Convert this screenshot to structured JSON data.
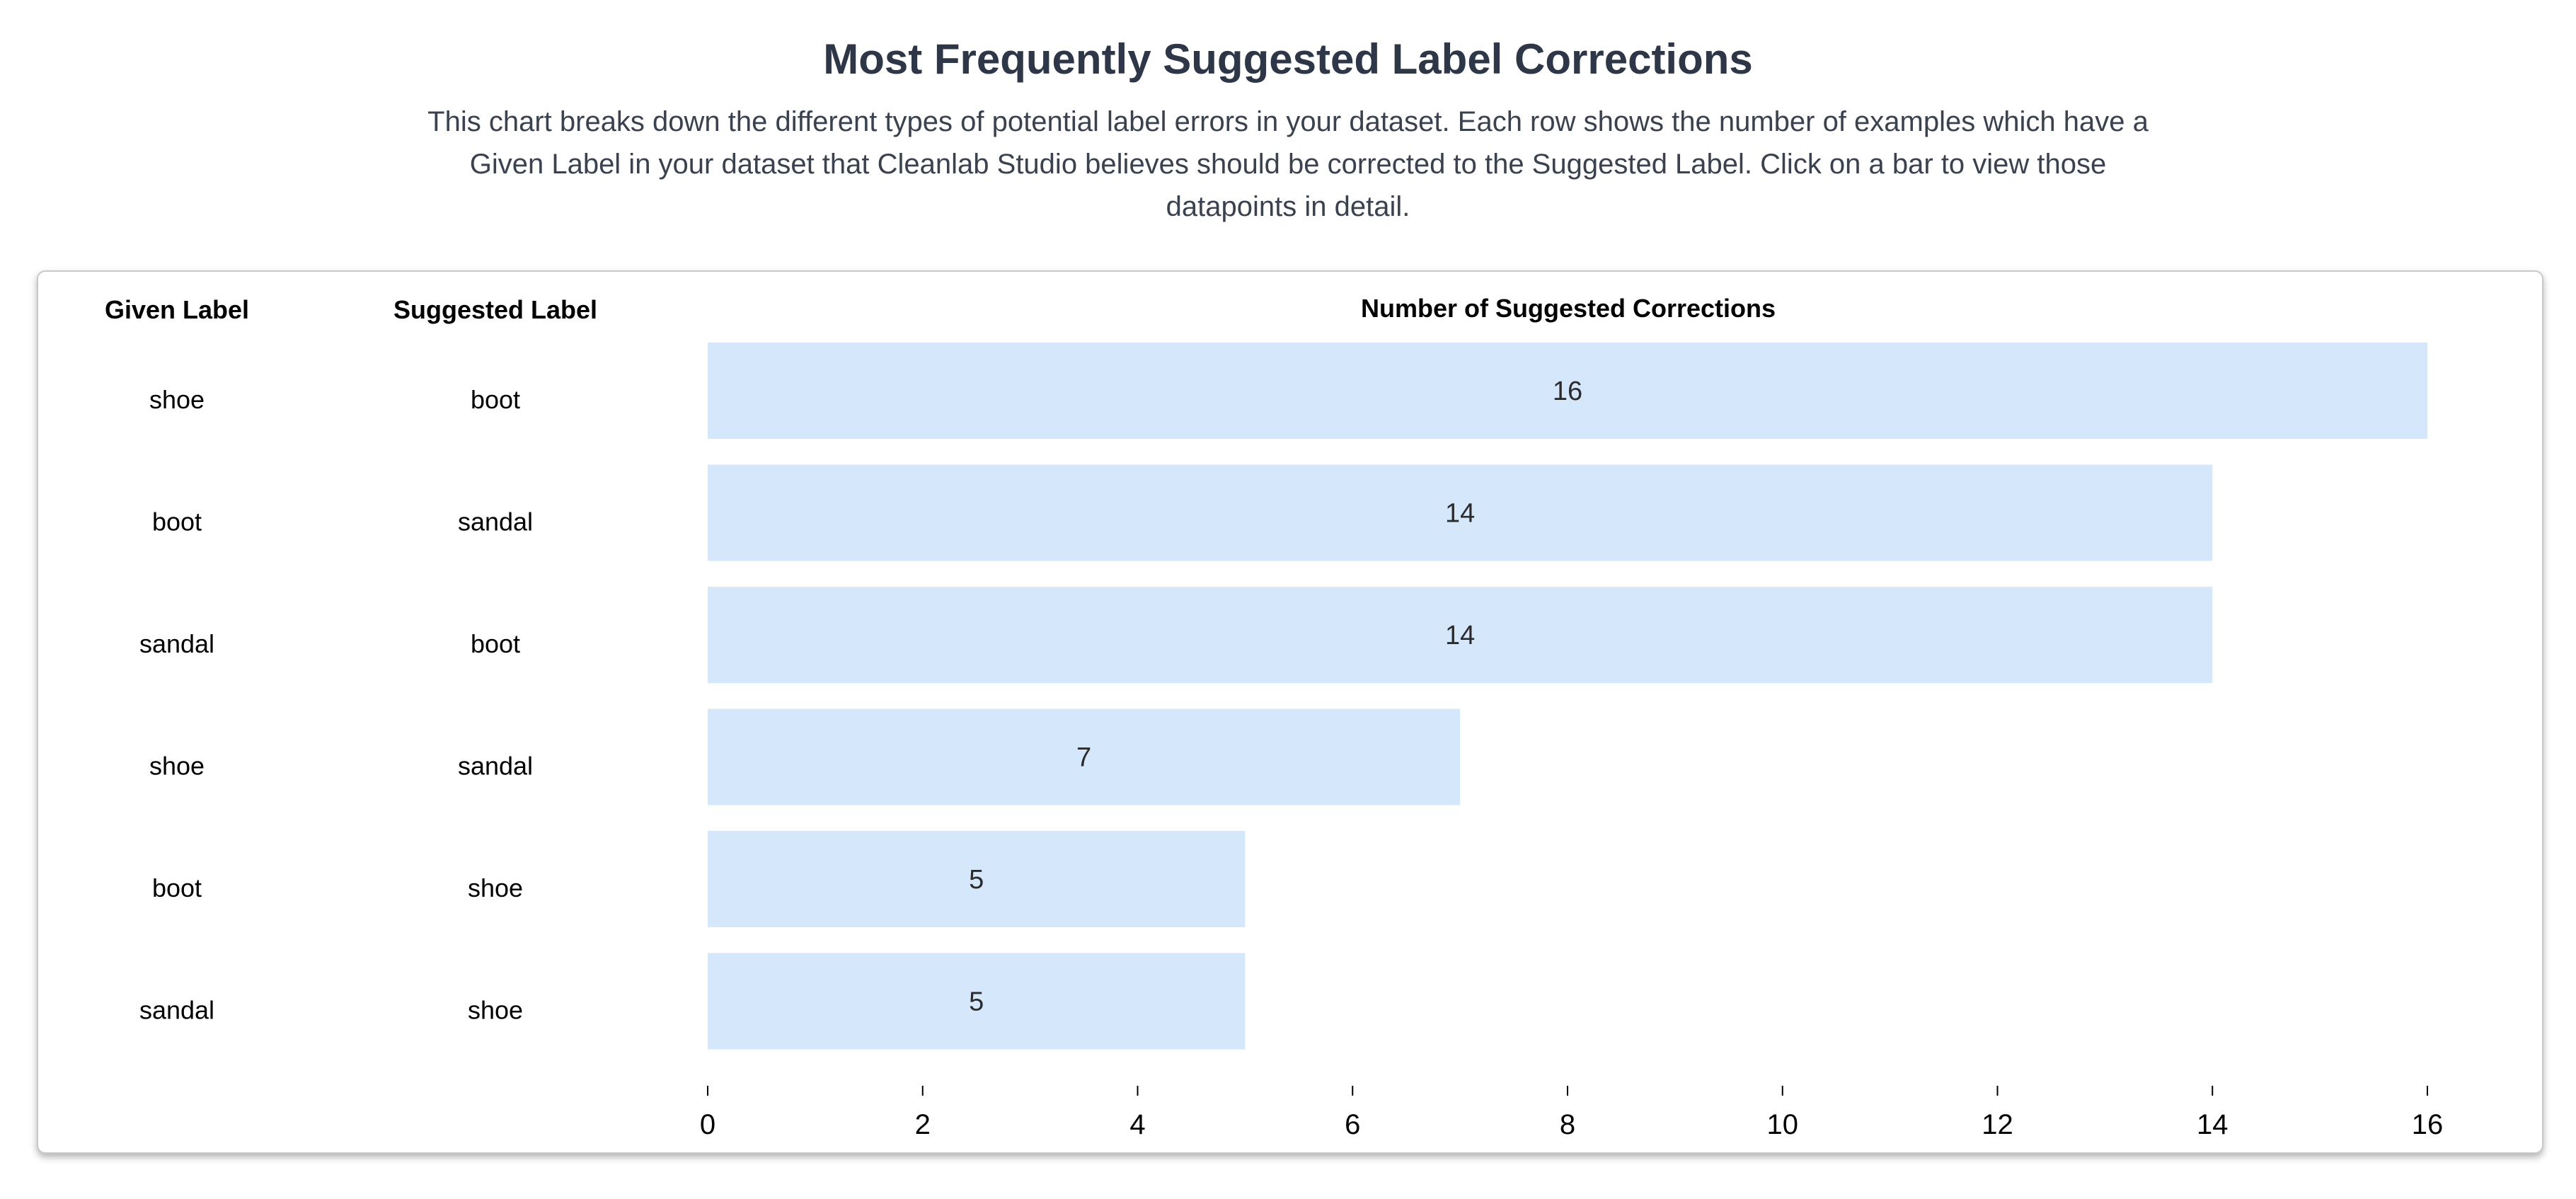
{
  "header": {
    "title": "Most Frequently Suggested Label Corrections",
    "description": "This chart breaks down the different types of potential label errors in your dataset. Each row shows the number of examples which have a Given Label in your dataset that Cleanlab Studio believes should be corrected to the Suggested Label. Click on a bar to view those datapoints in detail."
  },
  "chart_data": {
    "type": "bar",
    "orientation": "horizontal",
    "title": "",
    "xlabel": "Number of Suggested Corrections",
    "ylabel": "",
    "columns": {
      "given": "Given Label",
      "suggested": "Suggested Label",
      "count": "Number of Suggested Corrections"
    },
    "rows": [
      {
        "given": "shoe",
        "suggested": "boot",
        "value": 16
      },
      {
        "given": "boot",
        "suggested": "sandal",
        "value": 14
      },
      {
        "given": "sandal",
        "suggested": "boot",
        "value": 14
      },
      {
        "given": "shoe",
        "suggested": "sandal",
        "value": 7
      },
      {
        "given": "boot",
        "suggested": "shoe",
        "value": 5
      },
      {
        "given": "sandal",
        "suggested": "shoe",
        "value": 5
      }
    ],
    "xlim": [
      0,
      16
    ],
    "xticks": [
      0,
      2,
      4,
      6,
      8,
      10,
      12,
      14,
      16
    ],
    "grid": false,
    "legend": "none",
    "bar_color": "#d4e7fb"
  }
}
